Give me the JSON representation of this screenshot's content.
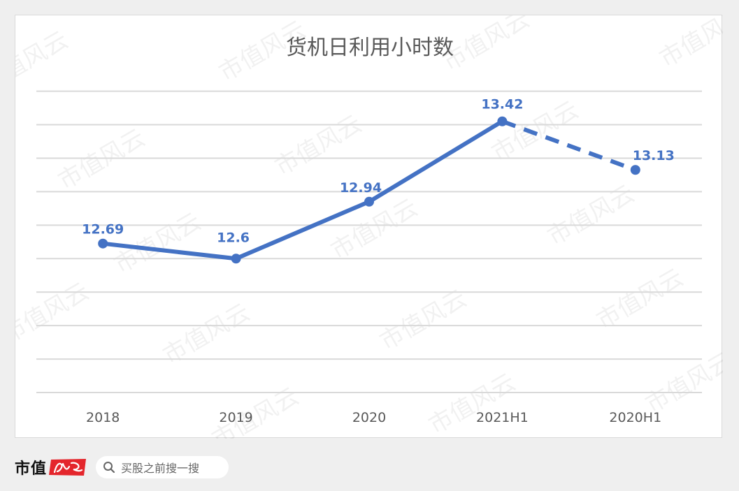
{
  "chart_data": {
    "type": "line",
    "title": "货机日利用小时数",
    "categories": [
      "2018",
      "2019",
      "2020",
      "2021H1",
      "2020H1"
    ],
    "series": [
      {
        "values": [
          12.69,
          12.6,
          12.94,
          13.42,
          13.13
        ],
        "data_labels": [
          "12.69",
          "12.6",
          "12.94",
          "13.42",
          "13.13"
        ],
        "line_style": [
          "solid",
          "solid",
          "solid",
          "dashed"
        ]
      }
    ],
    "ylim": [
      11.8,
      13.6
    ],
    "y_tick_step": 0.2,
    "grid": true,
    "y_tick_labels_shown": false,
    "legend": "none",
    "colors": {
      "line": "#4472c4",
      "grid": "#d9d9d9",
      "text": "#595959"
    }
  },
  "footer": {
    "brand": "市值",
    "brand_seal_text": "风云",
    "search_placeholder": "买股之前搜一搜"
  },
  "watermark": {
    "text": "市值风云"
  },
  "colors": {
    "brand_red": "#e4262c",
    "background": "#efefef"
  }
}
